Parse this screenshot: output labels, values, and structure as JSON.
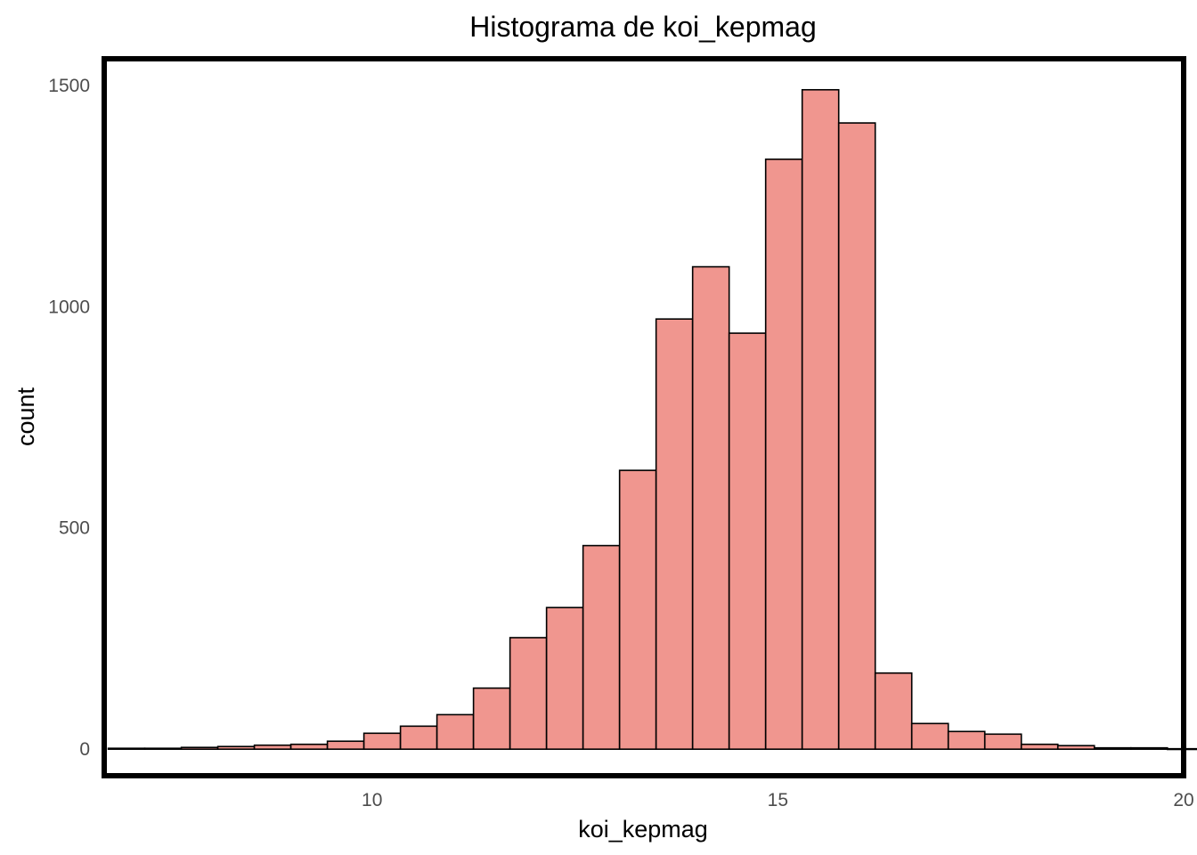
{
  "chart_data": {
    "type": "bar",
    "title": "Histograma de koi_kepmag",
    "xlabel": "koi_kepmag",
    "ylabel": "count",
    "xlim": [
      6.7,
      20
    ],
    "ylim": [
      -60,
      1560
    ],
    "x_ticks": [
      10,
      15,
      20
    ],
    "x_tick_labels": [
      "10",
      "15",
      "20"
    ],
    "y_ticks": [
      0,
      500,
      1000,
      1500
    ],
    "y_tick_labels": [
      "0",
      "500",
      "1000",
      "1500"
    ],
    "grid": false,
    "legend": "none",
    "bin_width": 0.45,
    "bin_start": 6.75,
    "values": [
      2,
      2,
      4,
      6,
      9,
      11,
      18,
      36,
      52,
      78,
      138,
      252,
      320,
      460,
      630,
      972,
      1090,
      940,
      1333,
      1490,
      1415,
      172,
      58,
      40,
      34,
      11,
      8,
      3,
      3,
      1
    ],
    "colors": {
      "bar_fill": "#f0968f",
      "bar_stroke": "#000000",
      "panel_border": "#000000",
      "background": "#ffffff",
      "tick_text": "#4d4d4d"
    }
  }
}
